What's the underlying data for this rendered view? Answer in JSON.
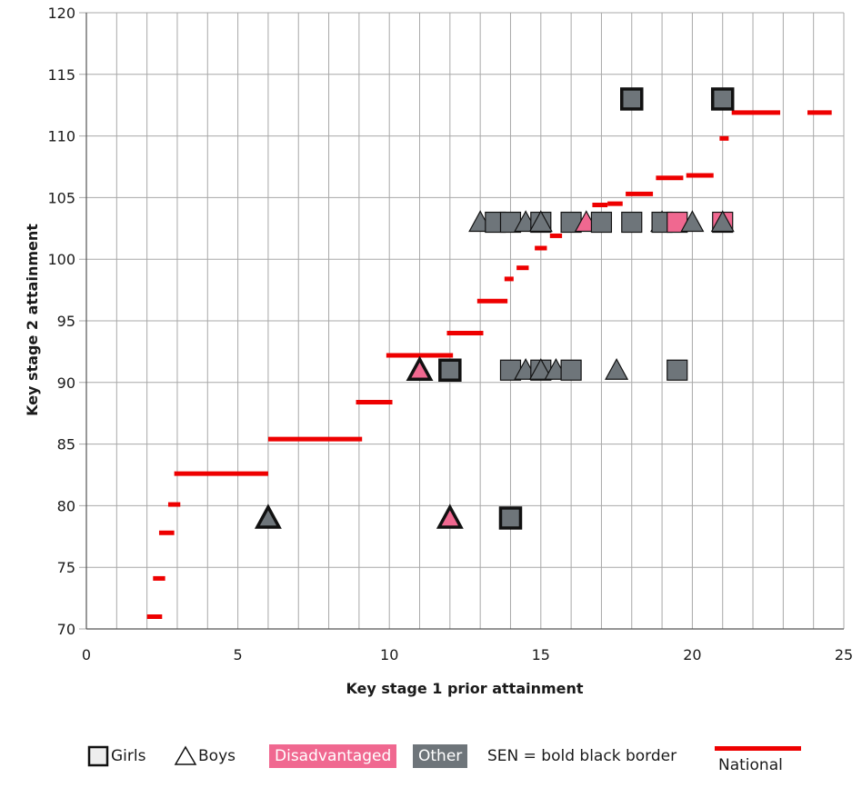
{
  "chart_data": {
    "type": "scatter",
    "title": "",
    "xlabel": "Key stage 1 prior attainment",
    "ylabel": "Key stage 2 attainment",
    "xlim": [
      0,
      25
    ],
    "ylim": [
      70,
      120
    ],
    "x_ticks": [
      0,
      5,
      10,
      15,
      20,
      25
    ],
    "y_ticks": [
      70,
      75,
      80,
      85,
      90,
      95,
      100,
      105,
      110,
      115,
      120
    ],
    "grid": true,
    "x_minor_gridlines_every": 1,
    "legend_position": "bottom",
    "colors": {
      "disadvantaged": "#f06890",
      "other": "#6e757a",
      "national": "#ee0000"
    },
    "national_series": {
      "name": "National",
      "segments": [
        {
          "x": [
            2.0,
            2.5
          ],
          "y": 71.0
        },
        {
          "x": [
            2.2,
            2.6
          ],
          "y": 74.1
        },
        {
          "x": [
            2.4,
            2.9
          ],
          "y": 77.8
        },
        {
          "x": [
            2.7,
            3.1
          ],
          "y": 80.1
        },
        {
          "x": [
            2.9,
            6.0
          ],
          "y": 82.6
        },
        {
          "x": [
            6.0,
            9.1
          ],
          "y": 85.4
        },
        {
          "x": [
            8.9,
            10.1
          ],
          "y": 88.4
        },
        {
          "x": [
            9.9,
            12.1
          ],
          "y": 92.2
        },
        {
          "x": [
            11.9,
            13.1
          ],
          "y": 94.0
        },
        {
          "x": [
            12.9,
            13.9
          ],
          "y": 96.6
        },
        {
          "x": [
            13.8,
            14.1
          ],
          "y": 98.4
        },
        {
          "x": [
            14.2,
            14.6
          ],
          "y": 99.3
        },
        {
          "x": [
            14.8,
            15.2
          ],
          "y": 100.9
        },
        {
          "x": [
            15.3,
            15.7
          ],
          "y": 101.9
        },
        {
          "x": [
            15.7,
            16.2
          ],
          "y": 102.8
        },
        {
          "x": [
            16.7,
            17.2
          ],
          "y": 104.4
        },
        {
          "x": [
            17.2,
            17.7
          ],
          "y": 104.5
        },
        {
          "x": [
            17.8,
            18.7
          ],
          "y": 105.3
        },
        {
          "x": [
            18.8,
            19.7
          ],
          "y": 106.6
        },
        {
          "x": [
            19.8,
            20.7
          ],
          "y": 106.8
        },
        {
          "x": [
            20.9,
            21.2
          ],
          "y": 109.8
        },
        {
          "x": [
            21.3,
            22.9
          ],
          "y": 111.9
        },
        {
          "x": [
            23.8,
            24.6
          ],
          "y": 111.9
        }
      ]
    },
    "points": [
      {
        "x": 18,
        "y": 113,
        "shape": "square",
        "group": "other",
        "sen": true
      },
      {
        "x": 21,
        "y": 113,
        "shape": "square",
        "group": "other",
        "sen": true
      },
      {
        "x": 13,
        "y": 103,
        "shape": "triangle",
        "group": "other",
        "sen": false
      },
      {
        "x": 13.5,
        "y": 103,
        "shape": "square",
        "group": "other",
        "sen": false
      },
      {
        "x": 14,
        "y": 103,
        "shape": "square",
        "group": "other",
        "sen": false
      },
      {
        "x": 14.5,
        "y": 103,
        "shape": "triangle",
        "group": "other",
        "sen": false
      },
      {
        "x": 15,
        "y": 103,
        "shape": "square",
        "group": "other",
        "sen": false
      },
      {
        "x": 15,
        "y": 103,
        "shape": "triangle",
        "group": "other",
        "sen": false
      },
      {
        "x": 16,
        "y": 103,
        "shape": "square",
        "group": "other",
        "sen": false
      },
      {
        "x": 16.5,
        "y": 103,
        "shape": "triangle",
        "group": "disadvantaged",
        "sen": false
      },
      {
        "x": 17,
        "y": 103,
        "shape": "square",
        "group": "other",
        "sen": false
      },
      {
        "x": 18,
        "y": 103,
        "shape": "square",
        "group": "other",
        "sen": false
      },
      {
        "x": 19,
        "y": 103,
        "shape": "triangle",
        "group": "other",
        "sen": false
      },
      {
        "x": 19,
        "y": 103,
        "shape": "square",
        "group": "other",
        "sen": false
      },
      {
        "x": 19.5,
        "y": 103,
        "shape": "square",
        "group": "disadvantaged",
        "sen": false
      },
      {
        "x": 20,
        "y": 103,
        "shape": "triangle",
        "group": "other",
        "sen": false
      },
      {
        "x": 21,
        "y": 103,
        "shape": "square",
        "group": "disadvantaged",
        "sen": false
      },
      {
        "x": 21,
        "y": 103,
        "shape": "triangle",
        "group": "other",
        "sen": false
      },
      {
        "x": 11,
        "y": 91,
        "shape": "triangle",
        "group": "disadvantaged",
        "sen": true
      },
      {
        "x": 12,
        "y": 91,
        "shape": "square",
        "group": "other",
        "sen": true
      },
      {
        "x": 14,
        "y": 91,
        "shape": "square",
        "group": "other",
        "sen": false
      },
      {
        "x": 14.5,
        "y": 91,
        "shape": "triangle",
        "group": "other",
        "sen": false
      },
      {
        "x": 15,
        "y": 91,
        "shape": "square",
        "group": "other",
        "sen": false
      },
      {
        "x": 15,
        "y": 91,
        "shape": "triangle",
        "group": "other",
        "sen": false
      },
      {
        "x": 15.5,
        "y": 91,
        "shape": "triangle",
        "group": "other",
        "sen": false
      },
      {
        "x": 16,
        "y": 91,
        "shape": "square",
        "group": "other",
        "sen": false
      },
      {
        "x": 17.5,
        "y": 91,
        "shape": "triangle",
        "group": "other",
        "sen": false
      },
      {
        "x": 19.5,
        "y": 91,
        "shape": "square",
        "group": "other",
        "sen": false
      },
      {
        "x": 6,
        "y": 79,
        "shape": "triangle",
        "group": "other",
        "sen": true
      },
      {
        "x": 12,
        "y": 79,
        "shape": "triangle",
        "group": "disadvantaged",
        "sen": true
      },
      {
        "x": 14,
        "y": 79,
        "shape": "square",
        "group": "other",
        "sen": true
      }
    ]
  },
  "legend": {
    "girls": "Girls",
    "boys": "Boys",
    "disadvantaged": "Disadvantaged",
    "other": "Other",
    "sen_note": "SEN = bold black border",
    "national": "National"
  }
}
